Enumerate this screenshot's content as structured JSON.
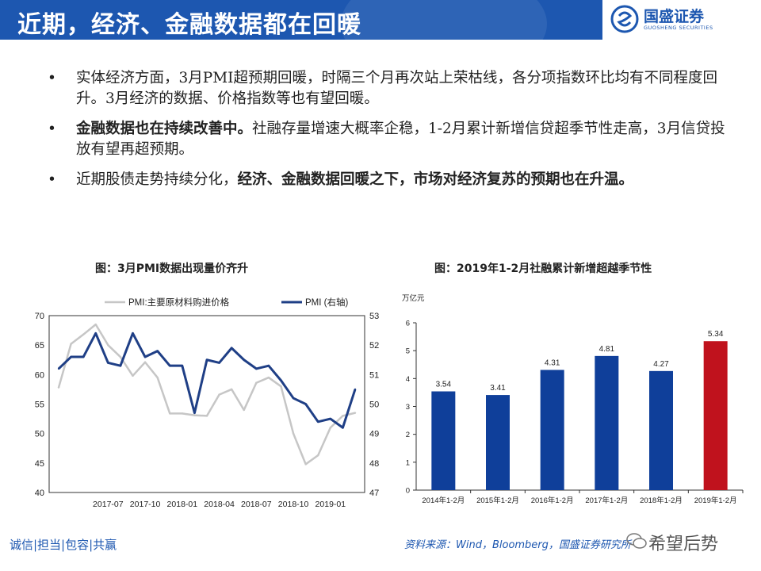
{
  "header": {
    "title": "近期，经济、金融数据都在回暖",
    "logo_name": "国盛证券",
    "logo_sub": "GUOSHENG SECURITIES"
  },
  "bullets": [
    {
      "plain": "实体经济方面，3月PMI超预期回暖，时隔三个月再次站上荣枯线，各分项指数环比均有不同程度回升。3月经济的数据、价格指数等也有望回暖。"
    },
    {
      "bold": "金融数据也在持续改善中。",
      "plain": "社融存量增速大概率企稳，1-2月累计新增信贷超季节性走高，3月信贷投放有望再超预期。"
    },
    {
      "plain": "近期股债走势持续分化，",
      "bold": "经济、金融数据回暖之下，市场对经济复苏的预期也在升温。"
    }
  ],
  "bullet_symbol": "•",
  "left_chart_title": "图：3月PMI数据出现量价齐升",
  "right_chart_title": "图：2019年1-2月社融累计新增超越季节性",
  "footer": {
    "left": "诚信|担当|包容|共赢",
    "source": "资料来源：Wind，Bloomberg，国盛证券研究所",
    "watermark": "希望后势"
  },
  "colors": {
    "brand": "#1d57b0",
    "gray_series": "#c6c6c6",
    "navy_series": "#1f3f86",
    "bar_blue": "#0f3f9a",
    "bar_red": "#c0121d"
  },
  "chart_data": [
    {
      "type": "line",
      "title": "图：3月PMI数据出现量价齐升",
      "x": [
        "2017-03",
        "2017-04",
        "2017-05",
        "2017-06",
        "2017-07",
        "2017-08",
        "2017-09",
        "2017-10",
        "2017-11",
        "2017-12",
        "2018-01",
        "2018-02",
        "2018-03",
        "2018-04",
        "2018-05",
        "2018-06",
        "2018-07",
        "2018-08",
        "2018-09",
        "2018-10",
        "2018-11",
        "2018-12",
        "2019-01",
        "2019-02",
        "2019-03"
      ],
      "x_tick_labels": [
        "2017-07",
        "2017-10",
        "2018-01",
        "2018-04",
        "2018-07",
        "2018-10",
        "2019-01"
      ],
      "series": [
        {
          "name": "PMI:主要原材料购进价格",
          "axis": "left",
          "values": [
            57.8,
            65.2,
            66.8,
            68.5,
            65.0,
            63.0,
            59.8,
            62.1,
            59.5,
            53.4,
            53.4,
            53.1,
            53.0,
            56.6,
            57.5,
            54.0,
            58.6,
            59.5,
            58.0,
            50.0,
            44.8,
            46.3,
            51.0,
            53.0,
            53.5
          ]
        },
        {
          "name": "PMI (右轴)",
          "axis": "right",
          "values": [
            51.2,
            51.6,
            51.6,
            52.4,
            51.4,
            51.3,
            52.4,
            51.6,
            51.8,
            51.3,
            51.3,
            49.7,
            51.5,
            51.4,
            51.9,
            51.5,
            51.2,
            51.3,
            50.8,
            50.2,
            50.0,
            49.4,
            49.5,
            49.2,
            50.5
          ]
        }
      ],
      "ylim_left": [
        40,
        70
      ],
      "yticks_left": [
        40,
        45,
        50,
        55,
        60,
        65,
        70
      ],
      "ylim_right": [
        47,
        53
      ],
      "yticks_right": [
        47,
        48,
        49,
        50,
        51,
        52,
        53
      ],
      "legend": "top"
    },
    {
      "type": "bar",
      "title": "图：2019年1-2月社融累计新增超越季节性",
      "ylabel": "万亿元",
      "categories": [
        "2014年1-2月",
        "2015年1-2月",
        "2016年1-2月",
        "2017年1-2月",
        "2018年1-2月",
        "2019年1-2月"
      ],
      "values": [
        3.54,
        3.41,
        4.31,
        4.81,
        4.27,
        5.34
      ],
      "value_labels": [
        "3.54",
        "3.41",
        "4.31",
        "4.81",
        "4.27",
        "5.34"
      ],
      "highlight_index": 5,
      "ylim": [
        0,
        6
      ],
      "yticks": [
        0,
        1,
        2,
        3,
        4,
        5,
        6
      ]
    }
  ]
}
